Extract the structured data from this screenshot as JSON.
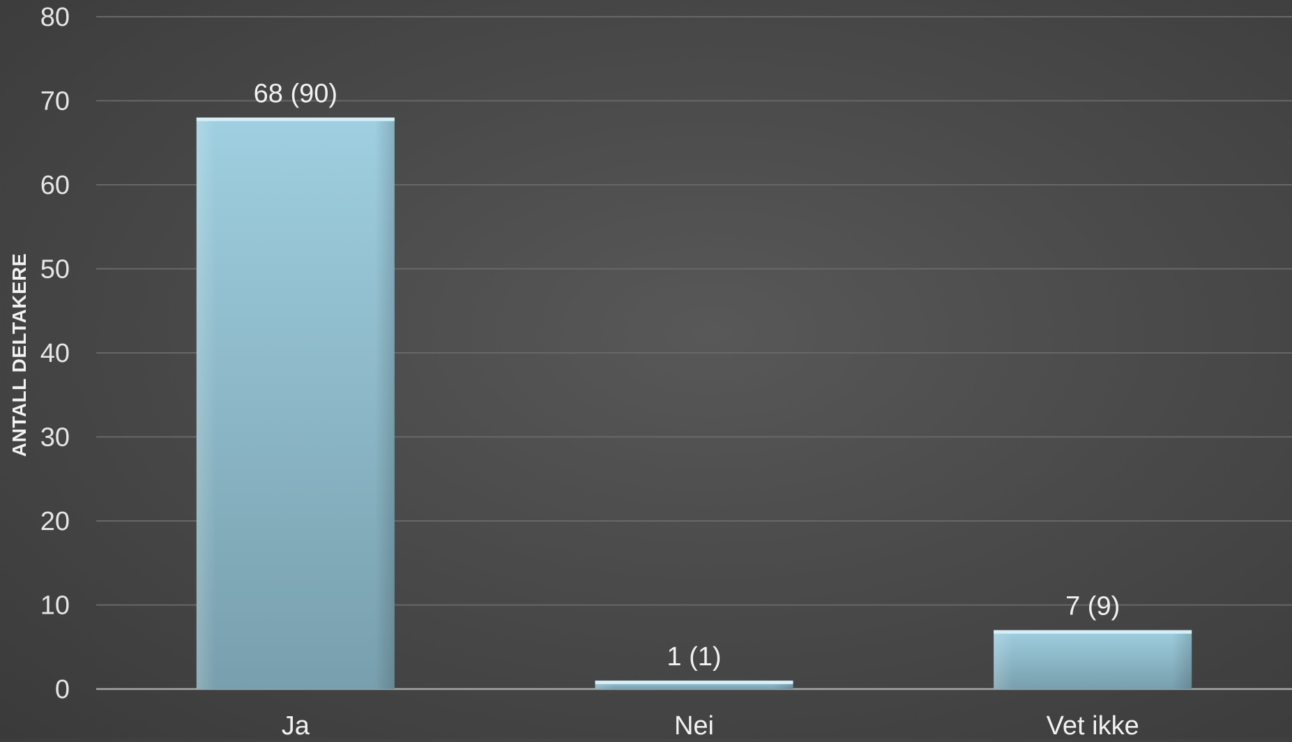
{
  "chart_data": {
    "type": "bar",
    "categories": [
      "Ja",
      "Nei",
      "Vet ikke"
    ],
    "values": [
      68,
      1,
      7
    ],
    "data_labels": [
      "68 (90)",
      "1 (1)",
      "7 (9)"
    ],
    "title": "",
    "xlabel": "",
    "ylabel": "ANTALL DELTAKERE",
    "ylim": [
      0,
      80
    ],
    "yticks": [
      0,
      10,
      20,
      30,
      40,
      50,
      60,
      70,
      80
    ],
    "grid": true,
    "legend": "none",
    "bar_color": "#8dbccd"
  }
}
